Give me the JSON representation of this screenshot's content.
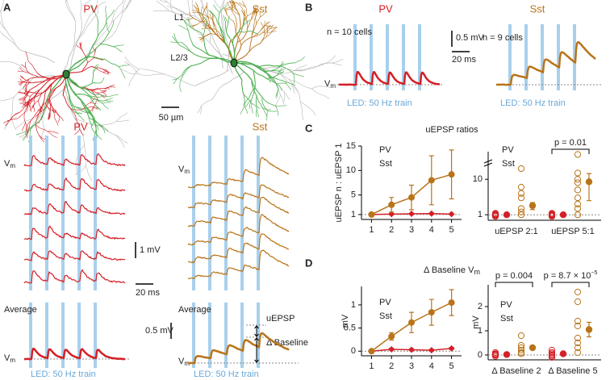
{
  "figure": {
    "panel_labels": [
      "A",
      "B",
      "C",
      "D"
    ],
    "morphology": {
      "pv": "PV",
      "sst": "Sst",
      "layers": [
        "L1",
        "L2/3"
      ],
      "scale": "50 µm"
    },
    "traces": {
      "pv": "PV",
      "sst": "Sst",
      "scale_mv": "1 mV",
      "scale_ms": "20 ms",
      "average": "Average",
      "avg_scale_mv": "0.5 mV",
      "uepsp": "uEPSP",
      "delta_baseline": "Δ Baseline"
    },
    "panel_b": {
      "pv": "PV",
      "sst": "Sst",
      "pv_n": "n = 10 cells",
      "sst_n": "n = 9 cells",
      "scale_mv": "0.5 mV",
      "scale_ms": "20 ms"
    },
    "vm": "V",
    "vm_sub": "m",
    "led": "LED: 50 Hz train"
  },
  "chart_data": [
    {
      "type": "line",
      "title": "uEPSP ratios",
      "y_label": "uEPSP n : uEPSP 1",
      "x": [
        1,
        2,
        3,
        4,
        5
      ],
      "xlim": [
        0.5,
        5.5
      ],
      "xticks": [
        1,
        2,
        3,
        4,
        5
      ],
      "ylim": [
        0,
        15
      ],
      "yticks": [
        1,
        5,
        10,
        15
      ],
      "reference_line": 1,
      "series": [
        {
          "name": "PV",
          "color": "#d42027",
          "marker": "diamond",
          "values": [
            1,
            1.1,
            1.15,
            1.2,
            1.1
          ],
          "errors": [
            0,
            0.1,
            0.1,
            0.15,
            0.1
          ]
        },
        {
          "name": "Sst",
          "color": "#b8741a",
          "marker": "circle",
          "values": [
            1,
            3,
            4.5,
            8,
            9.2
          ],
          "errors": [
            0,
            1.5,
            2.5,
            5,
            5
          ]
        }
      ]
    },
    {
      "type": "strip",
      "categories": [
        "uEPSP 2:1",
        "uEPSP 5:1"
      ],
      "log_y": true,
      "ylim": [
        0.7,
        60
      ],
      "yticks": [
        1,
        10
      ],
      "reference_line": 1,
      "annotations": [
        {
          "text": "p = 0.01"
        }
      ],
      "series": [
        {
          "name": "PV",
          "color": "#d42027",
          "values": [
            1,
            1
          ],
          "errors": [
            0.05,
            0.05
          ],
          "points": [
            [
              0.95,
              1,
              1.05,
              1,
              1.1,
              0.9,
              1
            ],
            [
              1,
              0.95,
              1.05,
              1.1,
              1,
              0.9,
              1
            ]
          ]
        },
        {
          "name": "Sst",
          "color": "#b8741a",
          "values": [
            1.8,
            8.5
          ],
          "errors": [
            0.4,
            6
          ],
          "points": [
            [
              1,
              1.2,
              1.5,
              3,
              4,
              6,
              20
            ],
            [
              1,
              1.5,
              2,
              3,
              5,
              8,
              10,
              15,
              50
            ]
          ]
        }
      ]
    },
    {
      "type": "line",
      "title": "Δ Baseline V",
      "title_subscript": "m",
      "y_label": "mV",
      "x": [
        1,
        2,
        3,
        4,
        5
      ],
      "xlim": [
        0.5,
        5.5
      ],
      "xticks": [
        1,
        2,
        3,
        4,
        5
      ],
      "ylim": [
        -0.1,
        1.4
      ],
      "yticks": [
        0,
        0.5,
        1
      ],
      "reference_line": 0,
      "series": [
        {
          "name": "PV",
          "color": "#d42027",
          "marker": "diamond",
          "values": [
            0,
            0.04,
            0.03,
            0.02,
            0.06
          ],
          "errors": [
            0,
            0.02,
            0.02,
            0.02,
            0.02
          ]
        },
        {
          "name": "Sst",
          "color": "#b8741a",
          "marker": "circle",
          "values": [
            0,
            0.32,
            0.62,
            0.84,
            1.05
          ],
          "errors": [
            0,
            0.08,
            0.22,
            0.28,
            0.28
          ]
        }
      ]
    },
    {
      "type": "strip",
      "categories": [
        "Δ Baseline 2",
        "Δ Baseline 5"
      ],
      "y_label": "mV",
      "ylim": [
        -0.2,
        2.9
      ],
      "yticks": [
        0,
        1,
        2
      ],
      "reference_line": 0,
      "annotations": [
        {
          "text": "p = 0.004"
        },
        {
          "text": "p = 8.7 × 10",
          "superscript": "−5"
        }
      ],
      "series": [
        {
          "name": "PV",
          "color": "#d42027",
          "values": [
            0.02,
            0.05
          ],
          "errors": [
            0.03,
            0.03
          ],
          "points": [
            [
              -0.05,
              0,
              0.05,
              0.1,
              0,
              0.03
            ],
            [
              -0.1,
              0,
              0.1,
              0.2,
              0.05,
              -0.05
            ]
          ]
        },
        {
          "name": "Sst",
          "color": "#b8741a",
          "values": [
            0.3,
            1.05
          ],
          "errors": [
            0.08,
            0.3
          ],
          "points": [
            [
              0.05,
              0.1,
              0.2,
              0.3,
              0.4,
              0.8
            ],
            [
              0.1,
              0.3,
              0.5,
              0.7,
              1.2,
              1.4,
              2.2,
              2.6
            ]
          ]
        }
      ]
    }
  ]
}
